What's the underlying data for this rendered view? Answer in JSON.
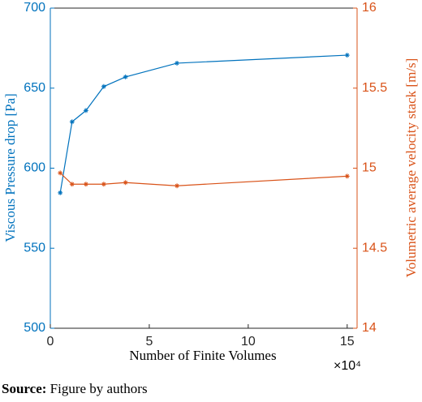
{
  "chart_data": {
    "type": "line",
    "x_label": "Number of Finite Volumes",
    "x_multiplier": "×10⁴",
    "y_label": "Viscous Pressure drop [Pa]",
    "y2_label": "Volumetric average velocity stack [m/s]",
    "x": [
      0.5,
      1.1,
      1.8,
      2.7,
      3.8,
      6.4,
      15
    ],
    "series": [
      {
        "color": "#0072BD",
        "values": [
          584.6,
          629,
          636,
          651,
          657,
          665.6,
          670.6
        ]
      },
      {
        "color": "#D95319",
        "axis": "y2",
        "values": [
          14.97,
          14.9,
          14.9,
          14.9,
          14.91,
          14.89,
          14.95
        ]
      }
    ],
    "xlim": [
      0,
      15.5
    ],
    "xticks": [
      0,
      5,
      10,
      15
    ],
    "ylim": [
      500,
      700
    ],
    "yticks": [
      500,
      550,
      600,
      650,
      700
    ],
    "y2lim": [
      14,
      16
    ],
    "y2ticks": [
      14,
      14.5,
      15,
      15.5,
      16
    ]
  },
  "caption": {
    "source_label": "Source:",
    "source_text": "Figure by authors"
  }
}
